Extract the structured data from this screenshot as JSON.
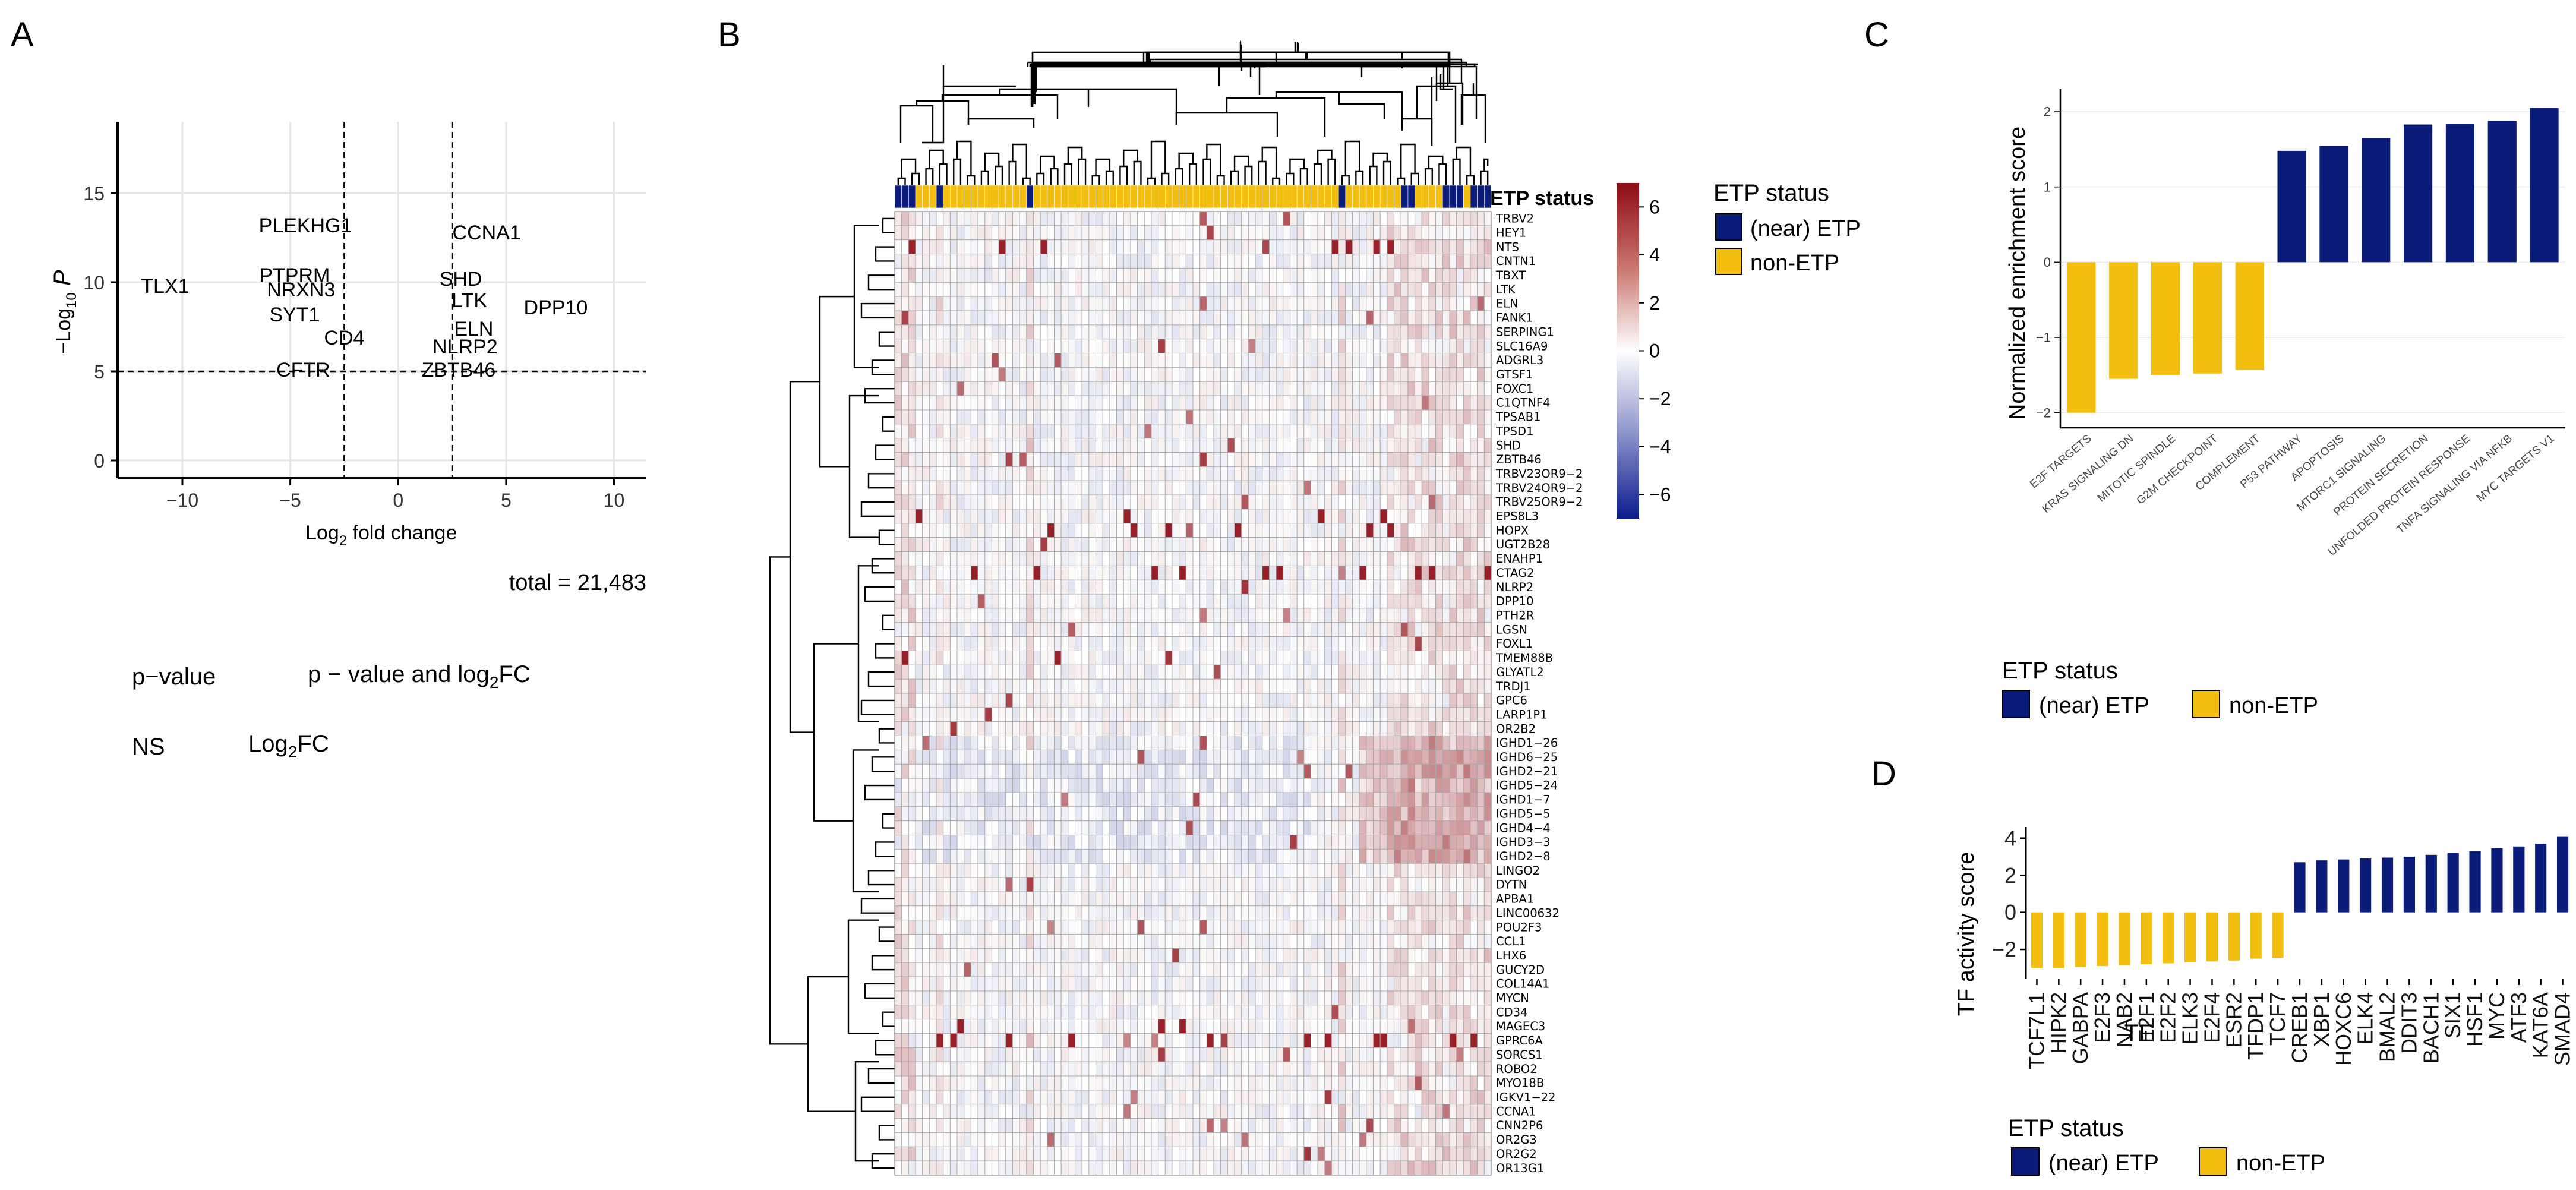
{
  "colors": {
    "etp": "#0B1B78",
    "non_etp": "#F2BE0F",
    "heat_high": "#8E0C14",
    "heat_low": "#0C1C8E"
  },
  "panels": {
    "a": "A",
    "b": "B",
    "c": "C",
    "d": "D"
  },
  "legend": {
    "title": "ETP status",
    "etp_label": "(near) ETP",
    "non_etp_label": "non-ETP"
  },
  "panel_a": {
    "total_label": "total = 21,483",
    "legend_keys": [
      "p−value",
      "p − value and log",
      "FC",
      "NS",
      "Log",
      "FC"
    ],
    "subscript": "2"
  },
  "chart_data": [
    {
      "type": "scatter",
      "panel": "A",
      "xlabel_main": "Log",
      "xlabel_sub": "2",
      "xlabel_tail": " fold change",
      "ylabel_main": "−Log",
      "ylabel_sub": "10",
      "ylabel_tail": " P",
      "xlim": [
        -13,
        11.5
      ],
      "ylim": [
        -1,
        19
      ],
      "xticks": [
        -10,
        -5,
        0,
        5,
        10
      ],
      "yticks": [
        0,
        5,
        10,
        15
      ],
      "xtick_labels": [
        "−10",
        "−5",
        "0",
        "5",
        "10"
      ],
      "ytick_labels": [
        "0",
        "5",
        "10",
        "15"
      ],
      "vlines": [
        -2.5,
        2.5
      ],
      "hline": 5,
      "points": [
        {
          "label": "TLX1",
          "x": -10.8,
          "y": 9.8
        },
        {
          "label": "PLEKHG1",
          "x": -4.3,
          "y": 13.2
        },
        {
          "label": "CCNA1",
          "x": 4.1,
          "y": 12.8
        },
        {
          "label": "PTPRM",
          "x": -4.8,
          "y": 10.4
        },
        {
          "label": "NRXN3",
          "x": -4.5,
          "y": 9.6
        },
        {
          "label": "SHD",
          "x": 2.9,
          "y": 10.2
        },
        {
          "label": "SYT1",
          "x": -4.8,
          "y": 8.2
        },
        {
          "label": "LTK",
          "x": 3.3,
          "y": 9.0
        },
        {
          "label": "DPP10",
          "x": 7.3,
          "y": 8.6
        },
        {
          "label": "CD4",
          "x": -2.5,
          "y": 6.9
        },
        {
          "label": "ELN",
          "x": 3.5,
          "y": 7.4
        },
        {
          "label": "NLRP2",
          "x": 3.1,
          "y": 6.4
        },
        {
          "label": "CFTR",
          "x": -4.4,
          "y": 5.1
        },
        {
          "label": "ZBTB46",
          "x": 2.8,
          "y": 5.1
        }
      ]
    },
    {
      "type": "heatmap",
      "panel": "B",
      "annotation_label": "ETP status",
      "colorbar_ticks": [
        "6",
        "4",
        "2",
        "0",
        "−2",
        "−4",
        "−6"
      ],
      "colorbar_values": [
        6,
        4,
        2,
        0,
        -2,
        -4,
        -6
      ],
      "n_columns": 86,
      "etp_columns": [
        0,
        1,
        2,
        6,
        19,
        64,
        73,
        74,
        79,
        80,
        81,
        83,
        84,
        85
      ],
      "rows": [
        "TRBV2",
        "HEY1",
        "NTS",
        "CNTN1",
        "TBXT",
        "LTK",
        "ELN",
        "FANK1",
        "SERPING1",
        "SLC16A9",
        "ADGRL3",
        "GTSF1",
        "FOXC1",
        "C1QTNF4",
        "TPSAB1",
        "TPSD1",
        "SHD",
        "ZBTB46",
        "TRBV23OR9−2",
        "TRBV24OR9−2",
        "TRBV25OR9−2",
        "EPS8L3",
        "HOPX",
        "UGT2B28",
        "ENAHP1",
        "CTAG2",
        "NLRP2",
        "DPP10",
        "PTH2R",
        "LGSN",
        "FOXL1",
        "TMEM88B",
        "GLYATL2",
        "TRDJ1",
        "GPC6",
        "LARP1P1",
        "OR2B2",
        "IGHD1−26",
        "IGHD6−25",
        "IGHD2−21",
        "IGHD5−24",
        "IGHD1−7",
        "IGHD5−5",
        "IGHD4−4",
        "IGHD3−3",
        "IGHD2−8",
        "LINGO2",
        "DYTN",
        "APBA1",
        "LINC00632",
        "POU2F3",
        "CCL1",
        "LHX6",
        "GUCY2D",
        "COL14A1",
        "MYCN",
        "CD34",
        "MAGEC3",
        "GPRC6A",
        "SORCS1",
        "ROBO2",
        "MYO18B",
        "IGKV1−22",
        "CCNA1",
        "CNN2P6",
        "OR2G3",
        "OR2G2",
        "OR13G1"
      ]
    },
    {
      "type": "bar",
      "panel": "C",
      "ylabel": "Normalized enrichment score",
      "ylim": [
        -2.2,
        2.3
      ],
      "yticks": [
        -2,
        -1,
        0,
        1,
        2
      ],
      "ytick_labels": [
        "−2",
        "−1",
        "0",
        "1",
        "2"
      ],
      "categories": [
        "E2F TARGETS",
        "KRAS SIGNALING DN",
        "MITOTIC SPINDLE",
        "G2M CHECKPOINT",
        "COMPLEMENT",
        "P53 PATHWAY",
        "APOPTOSIS",
        "MTORC1 SIGNALING",
        "PROTEIN SECRETION",
        "UNFOLDED PROTEIN RESPONSE",
        "TNFA SIGNALING VIA NFKB",
        "MYC TARGETS V1"
      ],
      "values": [
        -2.0,
        -1.55,
        -1.5,
        -1.48,
        -1.43,
        1.48,
        1.55,
        1.65,
        1.83,
        1.84,
        1.88,
        2.05
      ],
      "groups": [
        "non",
        "non",
        "non",
        "non",
        "non",
        "etp",
        "etp",
        "etp",
        "etp",
        "etp",
        "etp",
        "etp"
      ]
    },
    {
      "type": "bar",
      "panel": "D",
      "ylabel": "TF activity score",
      "xlabel": "TF",
      "ylim": [
        -3.6,
        4.6
      ],
      "yticks": [
        -2,
        0,
        2,
        4
      ],
      "ytick_labels": [
        "−2",
        "0",
        "2",
        "4"
      ],
      "categories": [
        "TCF7L1",
        "HIPK2",
        "GABPA",
        "E2F3",
        "NAB2",
        "E2F1",
        "E2F2",
        "ELK3",
        "E2F4",
        "ESR2",
        "TFDP1",
        "TCF7",
        "CREB1",
        "XBP1",
        "HOXC6",
        "ELK4",
        "BMAL2",
        "DDIT3",
        "BACH1",
        "SIX1",
        "HSF1",
        "MYC",
        "ATF3",
        "KAT6A",
        "SMAD4"
      ],
      "values": [
        -3.0,
        -3.0,
        -2.95,
        -2.9,
        -2.85,
        -2.8,
        -2.75,
        -2.7,
        -2.65,
        -2.6,
        -2.5,
        -2.45,
        2.7,
        2.8,
        2.85,
        2.9,
        2.95,
        3.0,
        3.1,
        3.2,
        3.3,
        3.45,
        3.55,
        3.7,
        4.1
      ],
      "groups": [
        "non",
        "non",
        "non",
        "non",
        "non",
        "non",
        "non",
        "non",
        "non",
        "non",
        "non",
        "non",
        "etp",
        "etp",
        "etp",
        "etp",
        "etp",
        "etp",
        "etp",
        "etp",
        "etp",
        "etp",
        "etp",
        "etp",
        "etp"
      ]
    }
  ]
}
